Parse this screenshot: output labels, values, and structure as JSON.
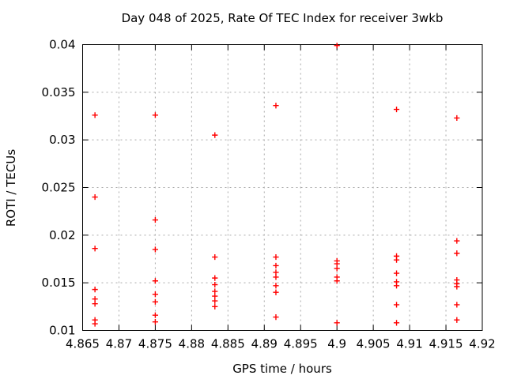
{
  "chart": {
    "title": "Day 048 of 2025, Rate Of TEC Index for receiver 3wkb",
    "xlabel": "GPS time / hours",
    "ylabel": "ROTI / TECUs"
  },
  "chart_data": {
    "type": "scatter",
    "title": "Day 048 of 2025, Rate Of TEC Index for receiver 3wkb",
    "xlabel": "GPS time / hours",
    "ylabel": "ROTI / TECUs",
    "xlim": [
      4.865,
      4.92
    ],
    "ylim": [
      0.01,
      0.04
    ],
    "xtick_labels": [
      "4.865",
      "4.87",
      "4.875",
      "4.88",
      "4.885",
      "4.89",
      "4.895",
      "4.9",
      "4.905",
      "4.91",
      "4.915",
      "4.92"
    ],
    "ytick_labels": [
      "0.01",
      "0.015",
      "0.02",
      "0.025",
      "0.03",
      "0.035",
      "0.04"
    ],
    "grid": true,
    "legend": false,
    "marker": {
      "shape": "plus",
      "color": "#ff0000",
      "half_size": 3.6,
      "stroke_width": 1.4
    },
    "grid_color": "#a8a8a8",
    "border_color": "#000000",
    "series": [
      {
        "name": "ROTI",
        "points": [
          [
            4.8667,
            0.0326
          ],
          [
            4.8667,
            0.024
          ],
          [
            4.8667,
            0.0186
          ],
          [
            4.8667,
            0.0143
          ],
          [
            4.8667,
            0.0133
          ],
          [
            4.8667,
            0.0128
          ],
          [
            4.8667,
            0.0111
          ],
          [
            4.8667,
            0.0107
          ],
          [
            4.875,
            0.0326
          ],
          [
            4.875,
            0.0216
          ],
          [
            4.875,
            0.0185
          ],
          [
            4.875,
            0.0152
          ],
          [
            4.875,
            0.0138
          ],
          [
            4.875,
            0.013
          ],
          [
            4.875,
            0.0116
          ],
          [
            4.875,
            0.0109
          ],
          [
            4.8832,
            0.0305
          ],
          [
            4.8832,
            0.0177
          ],
          [
            4.8832,
            0.0155
          ],
          [
            4.8832,
            0.0148
          ],
          [
            4.8832,
            0.0141
          ],
          [
            4.8832,
            0.0136
          ],
          [
            4.8832,
            0.0131
          ],
          [
            4.8832,
            0.0125
          ],
          [
            4.8916,
            0.0336
          ],
          [
            4.8916,
            0.0177
          ],
          [
            4.8916,
            0.0168
          ],
          [
            4.8916,
            0.0161
          ],
          [
            4.8916,
            0.0156
          ],
          [
            4.8916,
            0.0147
          ],
          [
            4.8916,
            0.014
          ],
          [
            4.8916,
            0.0114
          ],
          [
            4.9,
            0.0399
          ],
          [
            4.9,
            0.0173
          ],
          [
            4.9,
            0.017
          ],
          [
            4.9,
            0.0165
          ],
          [
            4.9,
            0.0156
          ],
          [
            4.9,
            0.0152
          ],
          [
            4.9,
            0.0108
          ],
          [
            4.9082,
            0.0332
          ],
          [
            4.9082,
            0.0178
          ],
          [
            4.9082,
            0.0174
          ],
          [
            4.9082,
            0.016
          ],
          [
            4.9082,
            0.0151
          ],
          [
            4.9082,
            0.0147
          ],
          [
            4.9082,
            0.0127
          ],
          [
            4.9082,
            0.0108
          ],
          [
            4.9165,
            0.0323
          ],
          [
            4.9165,
            0.0194
          ],
          [
            4.9165,
            0.0181
          ],
          [
            4.9165,
            0.0153
          ],
          [
            4.9165,
            0.0149
          ],
          [
            4.9165,
            0.0146
          ],
          [
            4.9165,
            0.0127
          ],
          [
            4.9165,
            0.0111
          ]
        ]
      }
    ]
  }
}
